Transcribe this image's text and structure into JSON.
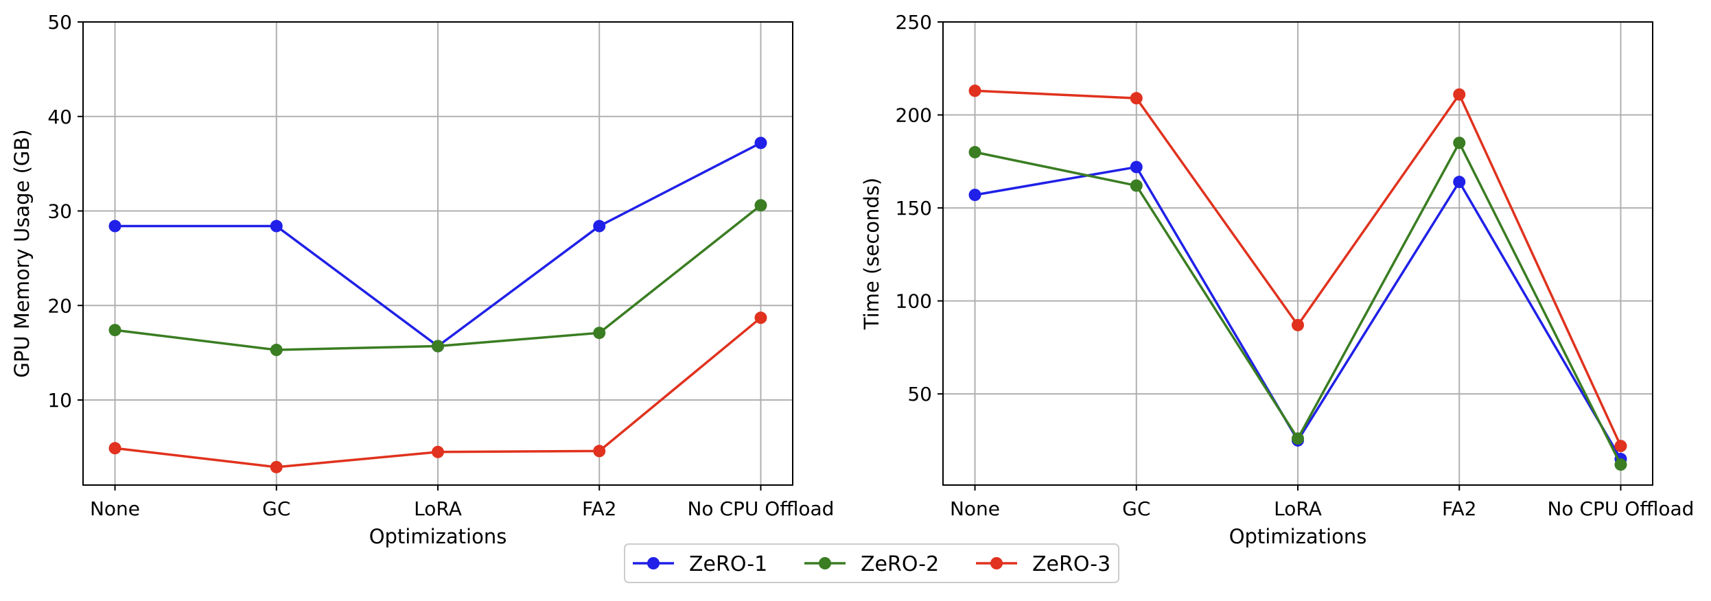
{
  "chart_data": [
    {
      "type": "line",
      "categories": [
        "None",
        "GC",
        "LoRA",
        "FA2",
        "No CPU Offload"
      ],
      "xlabel": "Optimizations",
      "ylabel": "GPU Memory Usage (GB)",
      "ylim": [
        1,
        50
      ],
      "yticks": [
        10,
        20,
        30,
        40,
        50
      ],
      "grid": true,
      "series": [
        {
          "name": "ZeRO-1",
          "color": "#2020e8",
          "values": [
            28.4,
            28.4,
            15.7,
            28.4,
            37.2
          ]
        },
        {
          "name": "ZeRO-2",
          "color": "#3a7d22",
          "values": [
            17.4,
            15.3,
            15.7,
            17.1,
            30.6
          ]
        },
        {
          "name": "ZeRO-3",
          "color": "#e0321e",
          "values": [
            4.9,
            2.9,
            4.5,
            4.6,
            18.7
          ]
        }
      ]
    },
    {
      "type": "line",
      "categories": [
        "None",
        "GC",
        "LoRA",
        "FA2",
        "No CPU Offload"
      ],
      "xlabel": "Optimizations",
      "ylabel": "Time (seconds)",
      "ylim": [
        1,
        250
      ],
      "yticks": [
        50,
        100,
        150,
        200,
        250
      ],
      "grid": true,
      "series": [
        {
          "name": "ZeRO-1",
          "color": "#2020e8",
          "values": [
            157,
            172,
            25,
            164,
            15
          ]
        },
        {
          "name": "ZeRO-2",
          "color": "#3a7d22",
          "values": [
            180,
            162,
            26,
            185,
            12
          ]
        },
        {
          "name": "ZeRO-3",
          "color": "#e0321e",
          "values": [
            213,
            209,
            87,
            211,
            22
          ]
        }
      ]
    }
  ],
  "legend": {
    "placement": "bottom-center",
    "entries": [
      "ZeRO-1",
      "ZeRO-2",
      "ZeRO-3"
    ]
  }
}
